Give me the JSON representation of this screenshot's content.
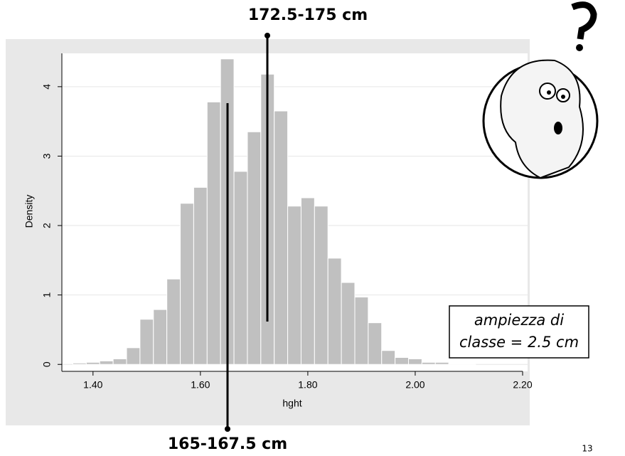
{
  "chart_data": {
    "type": "histogram",
    "ylabel": "Density",
    "xlabel": "hght",
    "bins": [
      1.3625,
      1.3875,
      1.4125,
      1.4375,
      1.4625,
      1.4875,
      1.5125,
      1.5375,
      1.5625,
      1.5875,
      1.6125,
      1.6375,
      1.6625,
      1.6875,
      1.7125,
      1.7375,
      1.7625,
      1.7875,
      1.8125,
      1.8375,
      1.8625,
      1.8875,
      1.9125,
      1.9375,
      1.9625,
      1.9875,
      2.0125,
      2.0375,
      2.0625,
      2.0875,
      2.1125
    ],
    "values": [
      0.02,
      0.03,
      0.05,
      0.08,
      0.24,
      0.65,
      0.79,
      1.23,
      2.32,
      2.55,
      3.78,
      4.4,
      2.78,
      3.35,
      4.18,
      3.65,
      2.28,
      2.4,
      2.28,
      1.53,
      1.18,
      0.97,
      0.6,
      0.2,
      0.1,
      0.08,
      0.03,
      0.03,
      0.01,
      0.01
    ],
    "color": "#c0c0c0",
    "xlim": [
      1.342,
      2.2
    ],
    "ylim": [
      -0.1,
      4.48
    ],
    "xticks": [
      {
        "value": 1.4,
        "label": "1.40"
      },
      {
        "value": 1.6,
        "label": "1.60"
      },
      {
        "value": 1.8,
        "label": "1.80"
      },
      {
        "value": 2.0,
        "label": "2.00"
      },
      {
        "value": 2.2,
        "label": "2.20"
      }
    ],
    "yticks": [
      0,
      1,
      2,
      3,
      4
    ],
    "grid": true,
    "annotations": [
      "172.5-175 cm",
      "165-167.5 cm",
      "ampiezza di",
      "classe = 2.5 cm"
    ]
  },
  "page_number": "13"
}
